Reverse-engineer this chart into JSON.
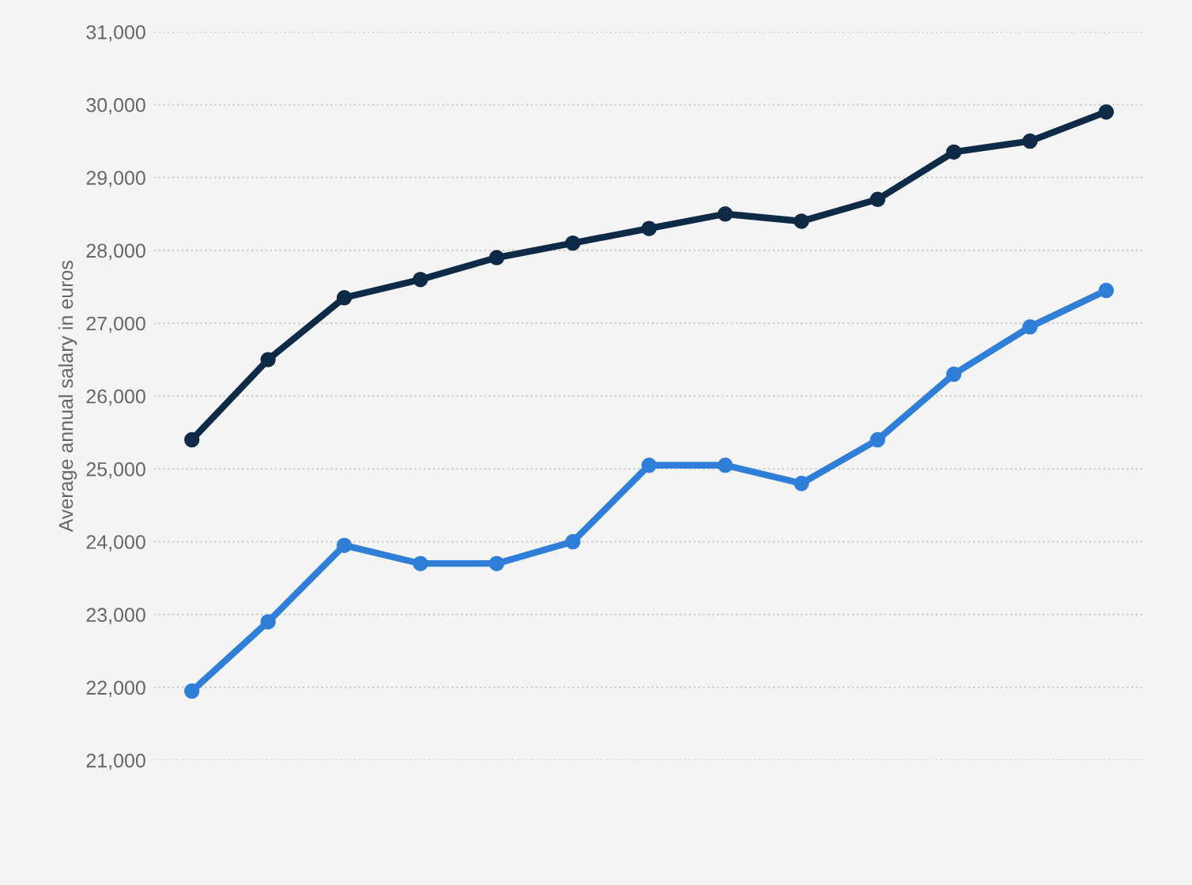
{
  "chart_data": {
    "type": "line",
    "ylabel": "Average annual salary in euros",
    "categories": [
      null,
      null,
      null,
      null,
      null,
      null,
      null,
      null,
      null,
      null,
      null,
      null,
      null
    ],
    "series": [
      {
        "color": "#0f2a47",
        "values": [
          25400,
          26500,
          27350,
          27600,
          27900,
          28100,
          28300,
          28500,
          28400,
          28700,
          29350,
          29500,
          29900
        ]
      },
      {
        "color": "#2f7ed8",
        "values": [
          21950,
          22900,
          23950,
          23700,
          23700,
          24000,
          25050,
          25050,
          24800,
          25400,
          26300,
          26950,
          27450
        ]
      }
    ],
    "ylim": [
      21000,
      31000
    ],
    "yticks": [
      {
        "value": 21000,
        "label": "21,000"
      },
      {
        "value": 22000,
        "label": "22,000"
      },
      {
        "value": 23000,
        "label": "23,000"
      },
      {
        "value": 24000,
        "label": "24,000"
      },
      {
        "value": 25000,
        "label": "25,000"
      },
      {
        "value": 26000,
        "label": "26,000"
      },
      {
        "value": 27000,
        "label": "27,000"
      },
      {
        "value": 28000,
        "label": "28,000"
      },
      {
        "value": 29000,
        "label": "29,000"
      },
      {
        "value": 30000,
        "label": "30,000"
      },
      {
        "value": 31000,
        "label": "31,000"
      }
    ],
    "grid": "y",
    "marker": "circle",
    "line_style": "solid",
    "legend": false
  }
}
